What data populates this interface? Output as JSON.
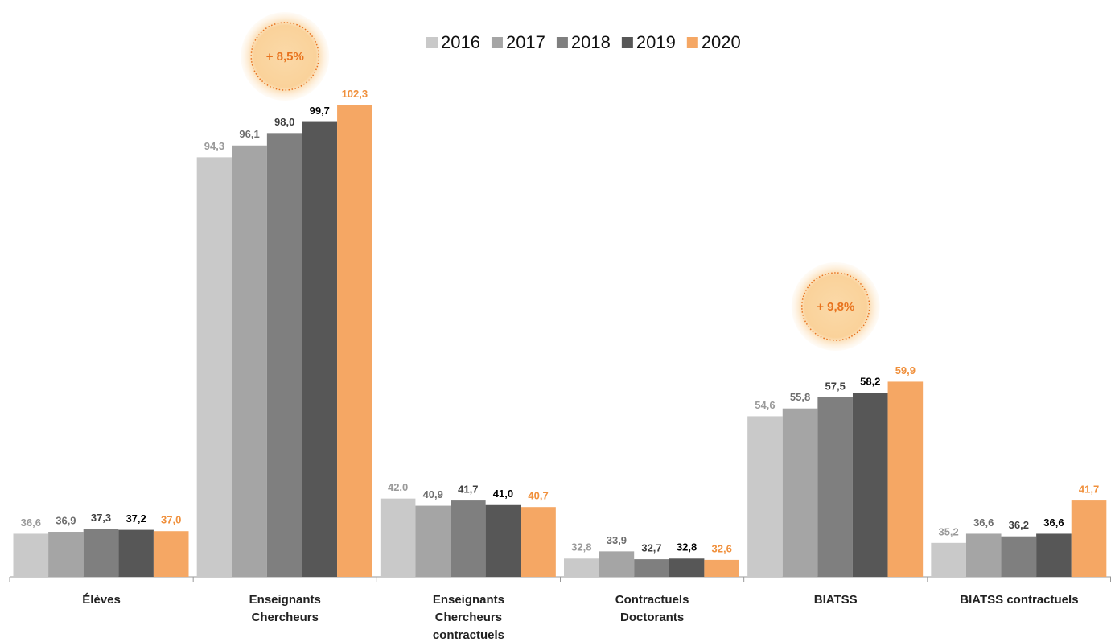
{
  "chart_data": {
    "type": "bar",
    "categories": [
      [
        "Élèves"
      ],
      [
        "Enseignants",
        "Chercheurs"
      ],
      [
        "Enseignants",
        "Chercheurs",
        "contractuels"
      ],
      [
        "Contractuels",
        "Doctorants"
      ],
      [
        "BIATSS"
      ],
      [
        "BIATSS contractuels"
      ]
    ],
    "series": [
      {
        "name": "2016",
        "color": "#c9c9c9",
        "label_color": "#9a9a9a",
        "values": [
          36.6,
          94.3,
          42.0,
          32.8,
          54.6,
          35.2
        ],
        "value_labels": [
          "36,6",
          "94,3",
          "42,0",
          "32,8",
          "54,6",
          "35,2"
        ]
      },
      {
        "name": "2017",
        "color": "#a5a5a5",
        "label_color": "#6e6e6e",
        "values": [
          36.9,
          96.1,
          40.9,
          33.9,
          55.8,
          36.6
        ],
        "value_labels": [
          "36,9",
          "96,1",
          "40,9",
          "33,9",
          "55,8",
          "36,6"
        ]
      },
      {
        "name": "2018",
        "color": "#7f7f7f",
        "label_color": "#404040",
        "values": [
          37.3,
          98.0,
          41.7,
          32.7,
          57.5,
          36.2
        ],
        "value_labels": [
          "37,3",
          "98,0",
          "41,7",
          "32,7",
          "57,5",
          "36,2"
        ]
      },
      {
        "name": "2019",
        "color": "#575757",
        "label_color": "#000000",
        "values": [
          37.2,
          99.7,
          41.0,
          32.8,
          58.2,
          36.6
        ],
        "value_labels": [
          "37,2",
          "99,7",
          "41,0",
          "32,8",
          "58,2",
          "36,6"
        ]
      },
      {
        "name": "2020",
        "color": "#f5a764",
        "label_color": "#f0903c",
        "values": [
          37.0,
          102.3,
          40.7,
          32.6,
          59.9,
          41.7
        ],
        "value_labels": [
          "37,0",
          "102,3",
          "40,7",
          "32,6",
          "59,9",
          "41,7"
        ]
      }
    ],
    "ylim": [
      30,
      110
    ],
    "annotations": [
      {
        "text": "+ 8,5%",
        "category": 1
      },
      {
        "text": "+ 9,8%",
        "category": 4
      }
    ]
  }
}
